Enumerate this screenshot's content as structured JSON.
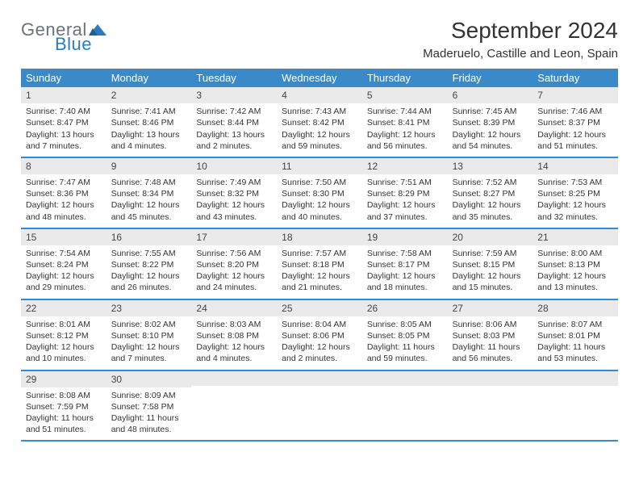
{
  "logo": {
    "text1": "General",
    "text2": "Blue"
  },
  "title": "September 2024",
  "location": "Maderuelo, Castille and Leon, Spain",
  "colors": {
    "header_bg": "#3a89c9",
    "header_text": "#ffffff",
    "daynum_bg": "#eaeaea",
    "border": "#3a89c9",
    "logo_gray": "#6b7278",
    "logo_blue": "#2b7bbd"
  },
  "weekdays": [
    "Sunday",
    "Monday",
    "Tuesday",
    "Wednesday",
    "Thursday",
    "Friday",
    "Saturday"
  ],
  "days": [
    {
      "n": "1",
      "sunrise": "7:40 AM",
      "sunset": "8:47 PM",
      "daylight": "13 hours and 7 minutes."
    },
    {
      "n": "2",
      "sunrise": "7:41 AM",
      "sunset": "8:46 PM",
      "daylight": "13 hours and 4 minutes."
    },
    {
      "n": "3",
      "sunrise": "7:42 AM",
      "sunset": "8:44 PM",
      "daylight": "13 hours and 2 minutes."
    },
    {
      "n": "4",
      "sunrise": "7:43 AM",
      "sunset": "8:42 PM",
      "daylight": "12 hours and 59 minutes."
    },
    {
      "n": "5",
      "sunrise": "7:44 AM",
      "sunset": "8:41 PM",
      "daylight": "12 hours and 56 minutes."
    },
    {
      "n": "6",
      "sunrise": "7:45 AM",
      "sunset": "8:39 PM",
      "daylight": "12 hours and 54 minutes."
    },
    {
      "n": "7",
      "sunrise": "7:46 AM",
      "sunset": "8:37 PM",
      "daylight": "12 hours and 51 minutes."
    },
    {
      "n": "8",
      "sunrise": "7:47 AM",
      "sunset": "8:36 PM",
      "daylight": "12 hours and 48 minutes."
    },
    {
      "n": "9",
      "sunrise": "7:48 AM",
      "sunset": "8:34 PM",
      "daylight": "12 hours and 45 minutes."
    },
    {
      "n": "10",
      "sunrise": "7:49 AM",
      "sunset": "8:32 PM",
      "daylight": "12 hours and 43 minutes."
    },
    {
      "n": "11",
      "sunrise": "7:50 AM",
      "sunset": "8:30 PM",
      "daylight": "12 hours and 40 minutes."
    },
    {
      "n": "12",
      "sunrise": "7:51 AM",
      "sunset": "8:29 PM",
      "daylight": "12 hours and 37 minutes."
    },
    {
      "n": "13",
      "sunrise": "7:52 AM",
      "sunset": "8:27 PM",
      "daylight": "12 hours and 35 minutes."
    },
    {
      "n": "14",
      "sunrise": "7:53 AM",
      "sunset": "8:25 PM",
      "daylight": "12 hours and 32 minutes."
    },
    {
      "n": "15",
      "sunrise": "7:54 AM",
      "sunset": "8:24 PM",
      "daylight": "12 hours and 29 minutes."
    },
    {
      "n": "16",
      "sunrise": "7:55 AM",
      "sunset": "8:22 PM",
      "daylight": "12 hours and 26 minutes."
    },
    {
      "n": "17",
      "sunrise": "7:56 AM",
      "sunset": "8:20 PM",
      "daylight": "12 hours and 24 minutes."
    },
    {
      "n": "18",
      "sunrise": "7:57 AM",
      "sunset": "8:18 PM",
      "daylight": "12 hours and 21 minutes."
    },
    {
      "n": "19",
      "sunrise": "7:58 AM",
      "sunset": "8:17 PM",
      "daylight": "12 hours and 18 minutes."
    },
    {
      "n": "20",
      "sunrise": "7:59 AM",
      "sunset": "8:15 PM",
      "daylight": "12 hours and 15 minutes."
    },
    {
      "n": "21",
      "sunrise": "8:00 AM",
      "sunset": "8:13 PM",
      "daylight": "12 hours and 13 minutes."
    },
    {
      "n": "22",
      "sunrise": "8:01 AM",
      "sunset": "8:12 PM",
      "daylight": "12 hours and 10 minutes."
    },
    {
      "n": "23",
      "sunrise": "8:02 AM",
      "sunset": "8:10 PM",
      "daylight": "12 hours and 7 minutes."
    },
    {
      "n": "24",
      "sunrise": "8:03 AM",
      "sunset": "8:08 PM",
      "daylight": "12 hours and 4 minutes."
    },
    {
      "n": "25",
      "sunrise": "8:04 AM",
      "sunset": "8:06 PM",
      "daylight": "12 hours and 2 minutes."
    },
    {
      "n": "26",
      "sunrise": "8:05 AM",
      "sunset": "8:05 PM",
      "daylight": "11 hours and 59 minutes."
    },
    {
      "n": "27",
      "sunrise": "8:06 AM",
      "sunset": "8:03 PM",
      "daylight": "11 hours and 56 minutes."
    },
    {
      "n": "28",
      "sunrise": "8:07 AM",
      "sunset": "8:01 PM",
      "daylight": "11 hours and 53 minutes."
    },
    {
      "n": "29",
      "sunrise": "8:08 AM",
      "sunset": "7:59 PM",
      "daylight": "11 hours and 51 minutes."
    },
    {
      "n": "30",
      "sunrise": "8:09 AM",
      "sunset": "7:58 PM",
      "daylight": "11 hours and 48 minutes."
    }
  ],
  "labels": {
    "sunrise": "Sunrise:",
    "sunset": "Sunset:",
    "daylight": "Daylight:"
  },
  "layout": {
    "start_weekday": 0,
    "total_cells": 35
  }
}
